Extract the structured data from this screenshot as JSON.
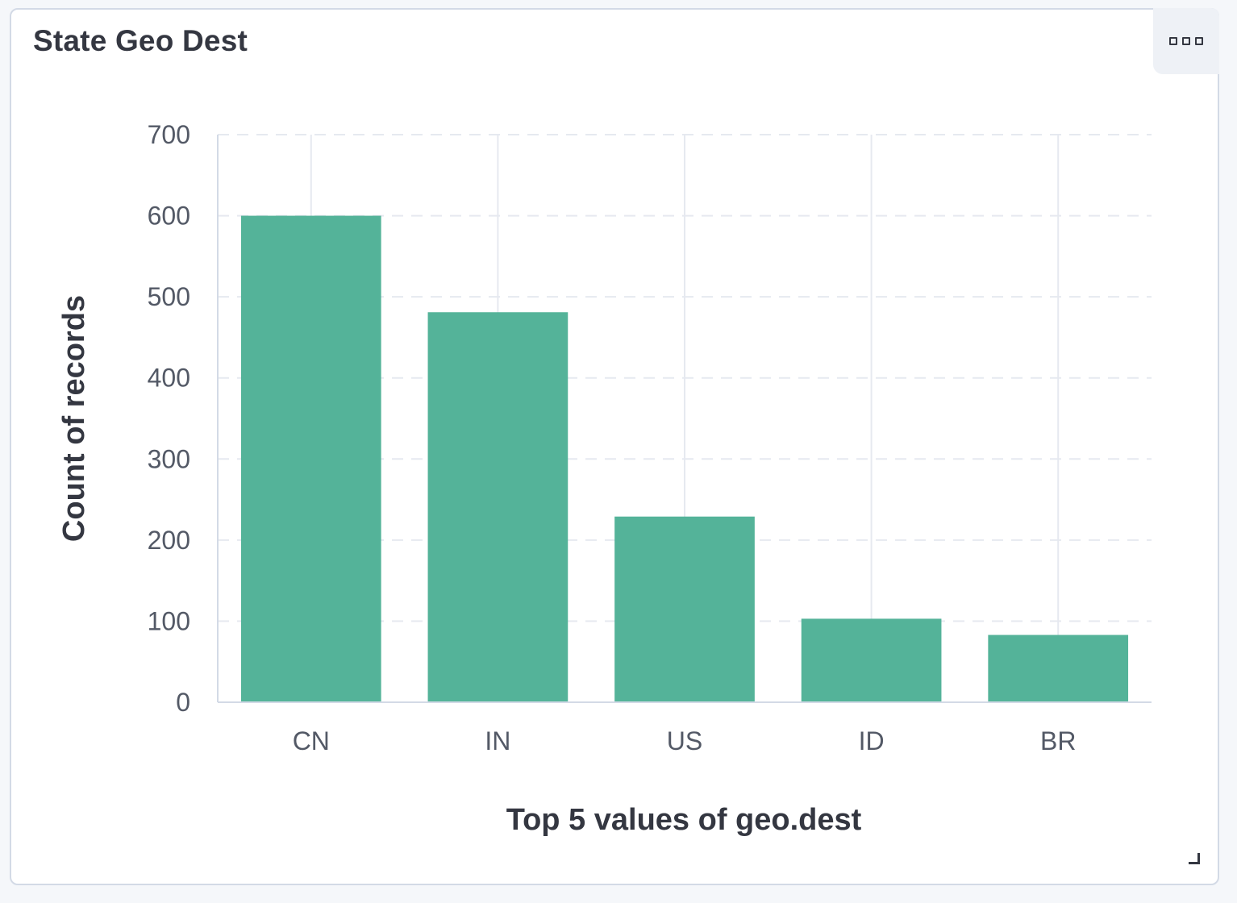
{
  "panel": {
    "title": "State Geo Dest",
    "menu_icon": "ellipsis-boxes-icon",
    "resize_icon": "resize-corner-icon"
  },
  "colors": {
    "bar": "#54b399",
    "grid": "#e6e9f0",
    "axis": "#d3dae6"
  },
  "chart_data": {
    "type": "bar",
    "categories": [
      "CN",
      "IN",
      "US",
      "ID",
      "BR"
    ],
    "values": [
      600,
      481,
      229,
      103,
      83
    ],
    "xlabel": "Top 5 values of geo.dest",
    "ylabel": "Count of records",
    "ylim": [
      0,
      700
    ],
    "yticks": [
      0,
      100,
      200,
      300,
      400,
      500,
      600,
      700
    ],
    "grid": true,
    "legend": "none"
  }
}
